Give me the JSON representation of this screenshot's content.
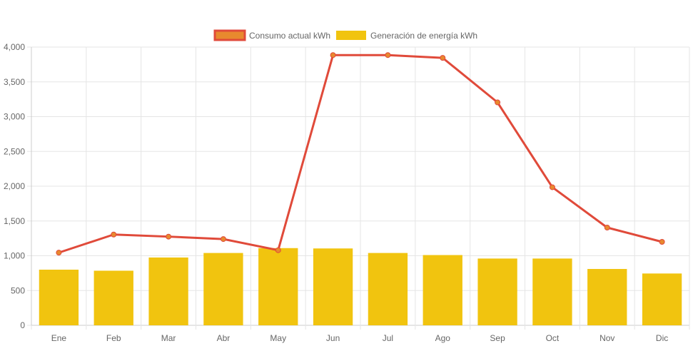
{
  "chart_data": {
    "type": "bar",
    "categories": [
      "Ene",
      "Feb",
      "Mar",
      "Abr",
      "May",
      "Jun",
      "Jul",
      "Ago",
      "Sep",
      "Oct",
      "Nov",
      "Dic"
    ],
    "series": [
      {
        "name": "Consumo actual kWh",
        "type": "line",
        "color": "#e04a3a",
        "point_color": "#e8892e",
        "values": [
          1045,
          1305,
          1275,
          1240,
          1080,
          3885,
          3885,
          3845,
          3205,
          1985,
          1405,
          1200
        ]
      },
      {
        "name": "Generación de energía kWh",
        "type": "bar",
        "color": "#f1c40f",
        "values": [
          800,
          785,
          975,
          1040,
          1110,
          1105,
          1040,
          1010,
          960,
          960,
          810,
          745
        ]
      }
    ],
    "y_ticks": [
      "0",
      "500",
      "1,000",
      "1,500",
      "2,000",
      "2,500",
      "3,000",
      "3,500",
      "4,000"
    ],
    "ylim": [
      0,
      4000
    ],
    "grid": true,
    "legend_position": "top-center"
  }
}
